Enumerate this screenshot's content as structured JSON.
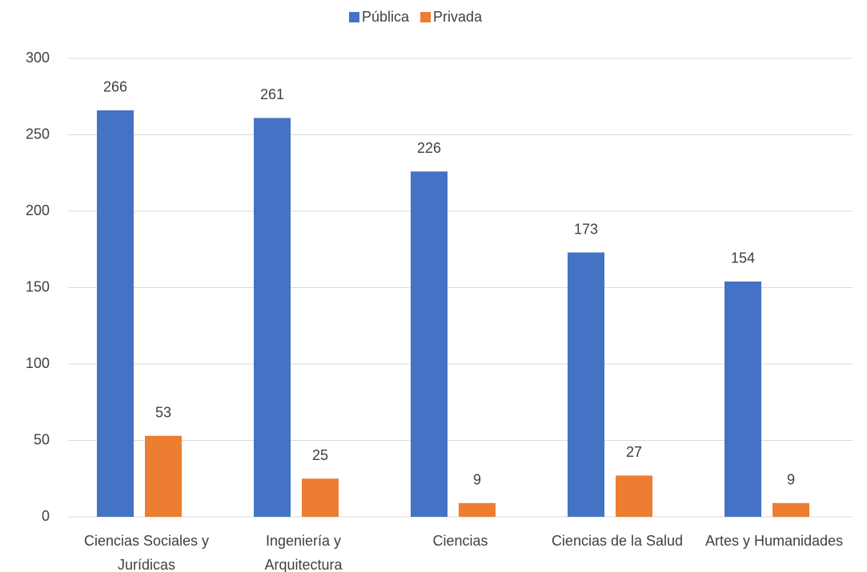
{
  "chart_data": {
    "type": "bar",
    "categories": [
      "Ciencias Sociales y Jurídicas",
      "Ingeniería y Arquitectura",
      "Ciencias",
      "Ciencias de la Salud",
      "Artes y Humanidades"
    ],
    "series": [
      {
        "name": "Pública",
        "color": "#4472c4",
        "values": [
          266,
          261,
          226,
          173,
          154
        ]
      },
      {
        "name": "Privada",
        "color": "#ed7d31",
        "values": [
          53,
          25,
          9,
          27,
          9
        ]
      }
    ],
    "ylim": [
      0,
      300
    ],
    "yticks": [
      0,
      50,
      100,
      150,
      200,
      250,
      300
    ],
    "grid": true,
    "legend": "top"
  }
}
